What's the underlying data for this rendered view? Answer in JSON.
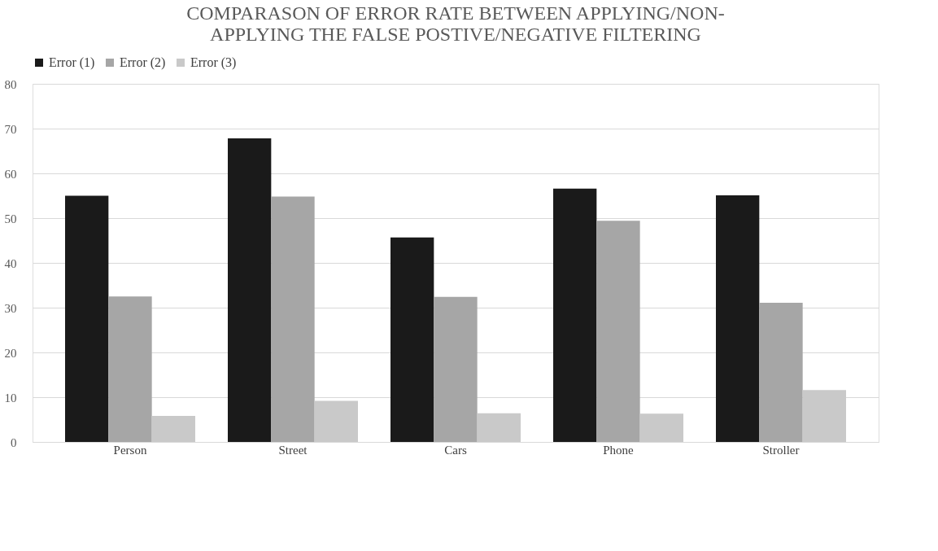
{
  "chart_data": {
    "type": "bar",
    "title": "COMPARASON OF ERROR RATE BETWEEN APPLYING/NON-APPLYING THE FALSE POSTIVE/NEGATIVE FILTERING",
    "categories": [
      "Person",
      "Street",
      "Cars",
      "Phone",
      "Stroller"
    ],
    "series": [
      {
        "name": "Error (1)",
        "color": "#1a1a1a",
        "values": [
          55.0,
          67.8,
          45.7,
          56.6,
          55.1
        ]
      },
      {
        "name": "Error (2)",
        "color": "#a6a6a6",
        "values": [
          32.5,
          54.8,
          32.4,
          49.4,
          31.1
        ]
      },
      {
        "name": "Error (3)",
        "color": "#c9c9c9",
        "values": [
          5.8,
          9.2,
          6.4,
          6.3,
          11.6
        ]
      }
    ],
    "ylim": [
      0,
      80
    ],
    "yticks": [
      0,
      10,
      20,
      30,
      40,
      50,
      60,
      70,
      80
    ],
    "grid": "y",
    "legend": "top"
  }
}
